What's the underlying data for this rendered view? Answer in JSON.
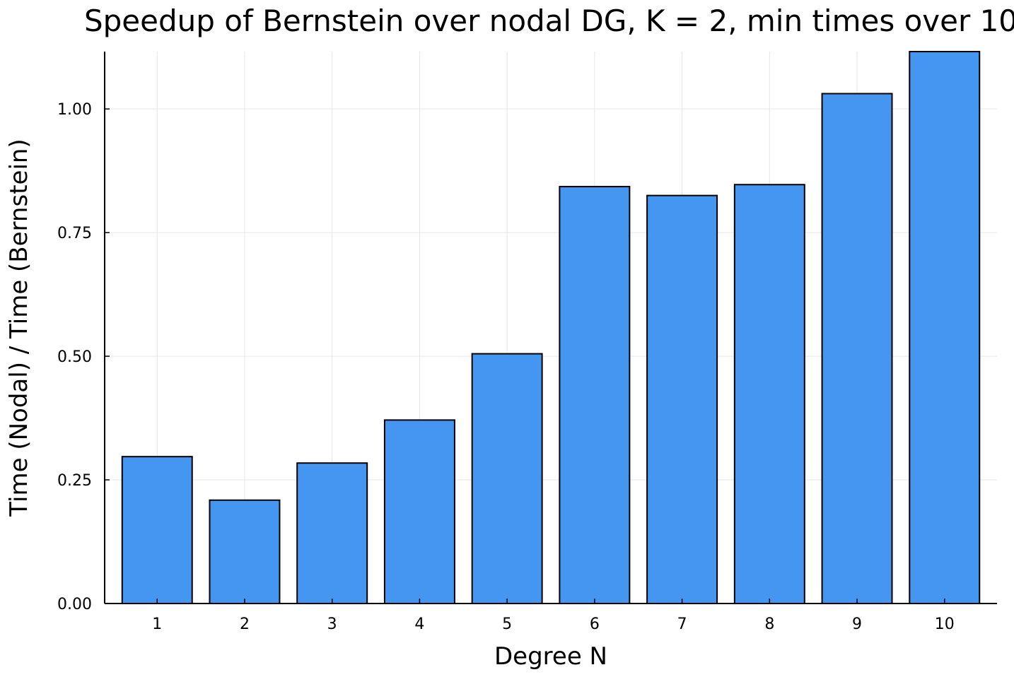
{
  "chart_data": {
    "type": "bar",
    "title": "Speedup of Bernstein over nodal DG, K = 2, min times over 10",
    "xlabel": "Degree N",
    "ylabel": "Time (Nodal) / Time (Bernstein)",
    "categories": [
      "1",
      "2",
      "3",
      "4",
      "5",
      "6",
      "7",
      "8",
      "9",
      "10"
    ],
    "values": [
      0.297,
      0.209,
      0.284,
      0.371,
      0.505,
      0.843,
      0.825,
      0.847,
      1.031,
      1.116
    ],
    "ylim": [
      0,
      1.116
    ],
    "yticks": [
      0,
      0.25,
      0.5,
      0.75,
      1.0
    ],
    "ytick_labels": [
      "0.00",
      "0.25",
      "0.50",
      "0.75",
      "1.00"
    ],
    "bar_color": "#4496f1",
    "grid": true,
    "legend": "none"
  }
}
